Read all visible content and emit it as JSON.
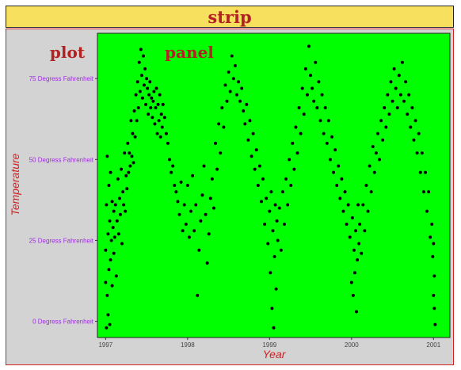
{
  "strip": {
    "label": "strip"
  },
  "labels": {
    "plot": "plot",
    "panel": "panel"
  },
  "chart_data": {
    "type": "scatter",
    "title": "",
    "xlabel": "Year",
    "ylabel": "Temperature",
    "xlim": [
      1996.9,
      2001.2
    ],
    "ylim": [
      -5,
      89
    ],
    "x_ticks": [
      {
        "value": 1997,
        "label": "1997"
      },
      {
        "value": 1998,
        "label": "1998"
      },
      {
        "value": 1999,
        "label": "1999"
      },
      {
        "value": 2000,
        "label": "2000"
      },
      {
        "value": 2001,
        "label": "2001"
      }
    ],
    "y_ticks": [
      {
        "value": 0,
        "label": "0 Degress Fahrenheit"
      },
      {
        "value": 25,
        "label": "25 Degress Fahrenheit"
      },
      {
        "value": 50,
        "label": "50 Degress Fahrenheit"
      },
      {
        "value": 75,
        "label": "75 Degress Fahrenheit"
      }
    ],
    "grid": false,
    "colors": {
      "panel": "#00ff00",
      "plot_background": "#d3d3d3",
      "strip": "#f6e05e",
      "points": "#000000",
      "label_text": "#b22222",
      "axis_title": "#d21f1f",
      "y_tick_text": "#9b30d9"
    },
    "series": [
      {
        "values": [
          [
            1997.0,
            12
          ],
          [
            1997.0,
            22
          ],
          [
            1997.01,
            -2
          ],
          [
            1997.01,
            36
          ],
          [
            1997.02,
            8
          ],
          [
            1997.02,
            51
          ],
          [
            1997.03,
            2
          ],
          [
            1997.03,
            27
          ],
          [
            1997.04,
            16
          ],
          [
            1997.04,
            42
          ],
          [
            1997.05,
            -1
          ],
          [
            1997.05,
            31
          ],
          [
            1997.06,
            19
          ],
          [
            1997.06,
            46
          ],
          [
            1997.07,
            25
          ],
          [
            1997.08,
            11
          ],
          [
            1997.08,
            37
          ],
          [
            1997.09,
            29
          ],
          [
            1997.1,
            34
          ],
          [
            1997.1,
            21
          ],
          [
            1997.11,
            26
          ],
          [
            1997.12,
            36
          ],
          [
            1997.13,
            14
          ],
          [
            1997.14,
            31
          ],
          [
            1997.15,
            44
          ],
          [
            1997.16,
            27
          ],
          [
            1997.17,
            38
          ],
          [
            1997.18,
            33
          ],
          [
            1997.19,
            47
          ],
          [
            1997.2,
            24
          ],
          [
            1997.21,
            40
          ],
          [
            1997.22,
            36
          ],
          [
            1997.23,
            52
          ],
          [
            1997.24,
            34
          ],
          [
            1997.25,
            45
          ],
          [
            1997.26,
            41
          ],
          [
            1997.27,
            55
          ],
          [
            1997.28,
            46
          ],
          [
            1997.29,
            52
          ],
          [
            1997.3,
            48
          ],
          [
            1997.31,
            62
          ],
          [
            1997.32,
            51
          ],
          [
            1997.33,
            58
          ],
          [
            1997.34,
            49
          ],
          [
            1997.35,
            65
          ],
          [
            1997.36,
            57
          ],
          [
            1997.37,
            70
          ],
          [
            1997.38,
            62
          ],
          [
            1997.39,
            74
          ],
          [
            1997.4,
            66
          ],
          [
            1997.41,
            80
          ],
          [
            1997.42,
            71
          ],
          [
            1997.43,
            84
          ],
          [
            1997.44,
            76
          ],
          [
            1997.45,
            69
          ],
          [
            1997.46,
            82
          ],
          [
            1997.47,
            73
          ],
          [
            1997.48,
            78
          ],
          [
            1997.49,
            67
          ],
          [
            1997.5,
            75
          ],
          [
            1997.51,
            72
          ],
          [
            1997.52,
            64
          ],
          [
            1997.53,
            70
          ],
          [
            1997.54,
            74
          ],
          [
            1997.55,
            66
          ],
          [
            1997.56,
            69
          ],
          [
            1997.57,
            63
          ],
          [
            1997.58,
            68
          ],
          [
            1997.59,
            71
          ],
          [
            1997.6,
            61
          ],
          [
            1997.61,
            66
          ],
          [
            1997.62,
            72
          ],
          [
            1997.63,
            58
          ],
          [
            1997.64,
            67
          ],
          [
            1997.65,
            62
          ],
          [
            1997.66,
            70
          ],
          [
            1997.67,
            57
          ],
          [
            1997.68,
            64
          ],
          [
            1997.69,
            60
          ],
          [
            1997.7,
            67
          ],
          [
            1997.72,
            63
          ],
          [
            1997.74,
            58
          ],
          [
            1997.76,
            55
          ],
          [
            1997.78,
            50
          ],
          [
            1997.8,
            46
          ],
          [
            1997.82,
            48
          ],
          [
            1997.84,
            42
          ],
          [
            1997.86,
            40
          ],
          [
            1997.88,
            37
          ],
          [
            1997.9,
            33
          ],
          [
            1997.92,
            43
          ],
          [
            1997.94,
            28
          ],
          [
            1997.96,
            36
          ],
          [
            1997.98,
            30
          ],
          [
            1998.0,
            42
          ],
          [
            1998.02,
            26
          ],
          [
            1998.04,
            34
          ],
          [
            1998.06,
            45
          ],
          [
            1998.08,
            28
          ],
          [
            1998.1,
            36
          ],
          [
            1998.12,
            8
          ],
          [
            1998.14,
            22
          ],
          [
            1998.16,
            31
          ],
          [
            1998.18,
            39
          ],
          [
            1998.2,
            48
          ],
          [
            1998.22,
            33
          ],
          [
            1998.24,
            18
          ],
          [
            1998.26,
            27
          ],
          [
            1998.28,
            38
          ],
          [
            1998.3,
            44
          ],
          [
            1998.32,
            35
          ],
          [
            1998.34,
            55
          ],
          [
            1998.36,
            47
          ],
          [
            1998.38,
            61
          ],
          [
            1998.4,
            52
          ],
          [
            1998.42,
            66
          ],
          [
            1998.44,
            60
          ],
          [
            1998.46,
            73
          ],
          [
            1998.48,
            68
          ],
          [
            1998.5,
            77
          ],
          [
            1998.52,
            71
          ],
          [
            1998.54,
            82
          ],
          [
            1998.56,
            75
          ],
          [
            1998.58,
            79
          ],
          [
            1998.6,
            70
          ],
          [
            1998.62,
            74
          ],
          [
            1998.64,
            68
          ],
          [
            1998.66,
            72
          ],
          [
            1998.68,
            65
          ],
          [
            1998.7,
            61
          ],
          [
            1998.72,
            67
          ],
          [
            1998.74,
            56
          ],
          [
            1998.76,
            62
          ],
          [
            1998.78,
            51
          ],
          [
            1998.8,
            58
          ],
          [
            1998.82,
            47
          ],
          [
            1998.84,
            53
          ],
          [
            1998.86,
            42
          ],
          [
            1998.88,
            48
          ],
          [
            1998.9,
            37
          ],
          [
            1998.92,
            44
          ],
          [
            1998.94,
            30
          ],
          [
            1998.96,
            38
          ],
          [
            1998.98,
            24
          ],
          [
            1999.0,
            34
          ],
          [
            1999.01,
            15
          ],
          [
            1999.02,
            40
          ],
          [
            1999.03,
            4
          ],
          [
            1999.04,
            28
          ],
          [
            1999.05,
            -2
          ],
          [
            1999.06,
            20
          ],
          [
            1999.07,
            36
          ],
          [
            1999.08,
            10
          ],
          [
            1999.09,
            31
          ],
          [
            1999.1,
            25
          ],
          [
            1999.12,
            35
          ],
          [
            1999.14,
            22
          ],
          [
            1999.16,
            40
          ],
          [
            1999.18,
            30
          ],
          [
            1999.2,
            44
          ],
          [
            1999.22,
            36
          ],
          [
            1999.24,
            50
          ],
          [
            1999.26,
            42
          ],
          [
            1999.28,
            55
          ],
          [
            1999.3,
            47
          ],
          [
            1999.32,
            60
          ],
          [
            1999.34,
            52
          ],
          [
            1999.36,
            66
          ],
          [
            1999.38,
            58
          ],
          [
            1999.4,
            72
          ],
          [
            1999.42,
            64
          ],
          [
            1999.44,
            78
          ],
          [
            1999.46,
            70
          ],
          [
            1999.48,
            85
          ],
          [
            1999.5,
            76
          ],
          [
            1999.52,
            72
          ],
          [
            1999.54,
            68
          ],
          [
            1999.56,
            80
          ],
          [
            1999.58,
            66
          ],
          [
            1999.6,
            74
          ],
          [
            1999.62,
            62
          ],
          [
            1999.64,
            70
          ],
          [
            1999.66,
            58
          ],
          [
            1999.68,
            66
          ],
          [
            1999.7,
            55
          ],
          [
            1999.72,
            62
          ],
          [
            1999.74,
            50
          ],
          [
            1999.76,
            57
          ],
          [
            1999.78,
            46
          ],
          [
            1999.8,
            53
          ],
          [
            1999.82,
            42
          ],
          [
            1999.84,
            48
          ],
          [
            1999.86,
            38
          ],
          [
            1999.88,
            44
          ],
          [
            1999.9,
            34
          ],
          [
            1999.92,
            40
          ],
          [
            1999.94,
            30
          ],
          [
            1999.96,
            36
          ],
          [
            1999.98,
            26
          ],
          [
            2000.0,
            12
          ],
          [
            2000.01,
            32
          ],
          [
            2000.02,
            8
          ],
          [
            2000.03,
            22
          ],
          [
            2000.04,
            15
          ],
          [
            2000.05,
            28
          ],
          [
            2000.06,
            3
          ],
          [
            2000.07,
            19
          ],
          [
            2000.08,
            36
          ],
          [
            2000.09,
            24
          ],
          [
            2000.1,
            30
          ],
          [
            2000.12,
            21
          ],
          [
            2000.14,
            36
          ],
          [
            2000.16,
            28
          ],
          [
            2000.18,
            42
          ],
          [
            2000.2,
            34
          ],
          [
            2000.22,
            48
          ],
          [
            2000.24,
            40
          ],
          [
            2000.26,
            54
          ],
          [
            2000.28,
            46
          ],
          [
            2000.3,
            52
          ],
          [
            2000.32,
            58
          ],
          [
            2000.34,
            50
          ],
          [
            2000.36,
            62
          ],
          [
            2000.38,
            56
          ],
          [
            2000.4,
            66
          ],
          [
            2000.42,
            60
          ],
          [
            2000.44,
            70
          ],
          [
            2000.46,
            64
          ],
          [
            2000.48,
            74
          ],
          [
            2000.5,
            68
          ],
          [
            2000.52,
            78
          ],
          [
            2000.54,
            72
          ],
          [
            2000.56,
            66
          ],
          [
            2000.58,
            76
          ],
          [
            2000.6,
            70
          ],
          [
            2000.62,
            80
          ],
          [
            2000.64,
            68
          ],
          [
            2000.66,
            74
          ],
          [
            2000.68,
            64
          ],
          [
            2000.7,
            70
          ],
          [
            2000.72,
            60
          ],
          [
            2000.74,
            66
          ],
          [
            2000.76,
            56
          ],
          [
            2000.78,
            62
          ],
          [
            2000.8,
            52
          ],
          [
            2000.82,
            58
          ],
          [
            2000.84,
            46
          ],
          [
            2000.86,
            52
          ],
          [
            2000.88,
            40
          ],
          [
            2000.9,
            46
          ],
          [
            2000.92,
            34
          ],
          [
            2000.94,
            40
          ],
          [
            2000.96,
            26
          ],
          [
            2000.98,
            30
          ],
          [
            2000.99,
            20
          ],
          [
            2001.0,
            8
          ],
          [
            2001.0,
            24
          ],
          [
            2001.01,
            4
          ],
          [
            2001.01,
            14
          ],
          [
            2001.02,
            -1
          ]
        ]
      }
    ]
  }
}
